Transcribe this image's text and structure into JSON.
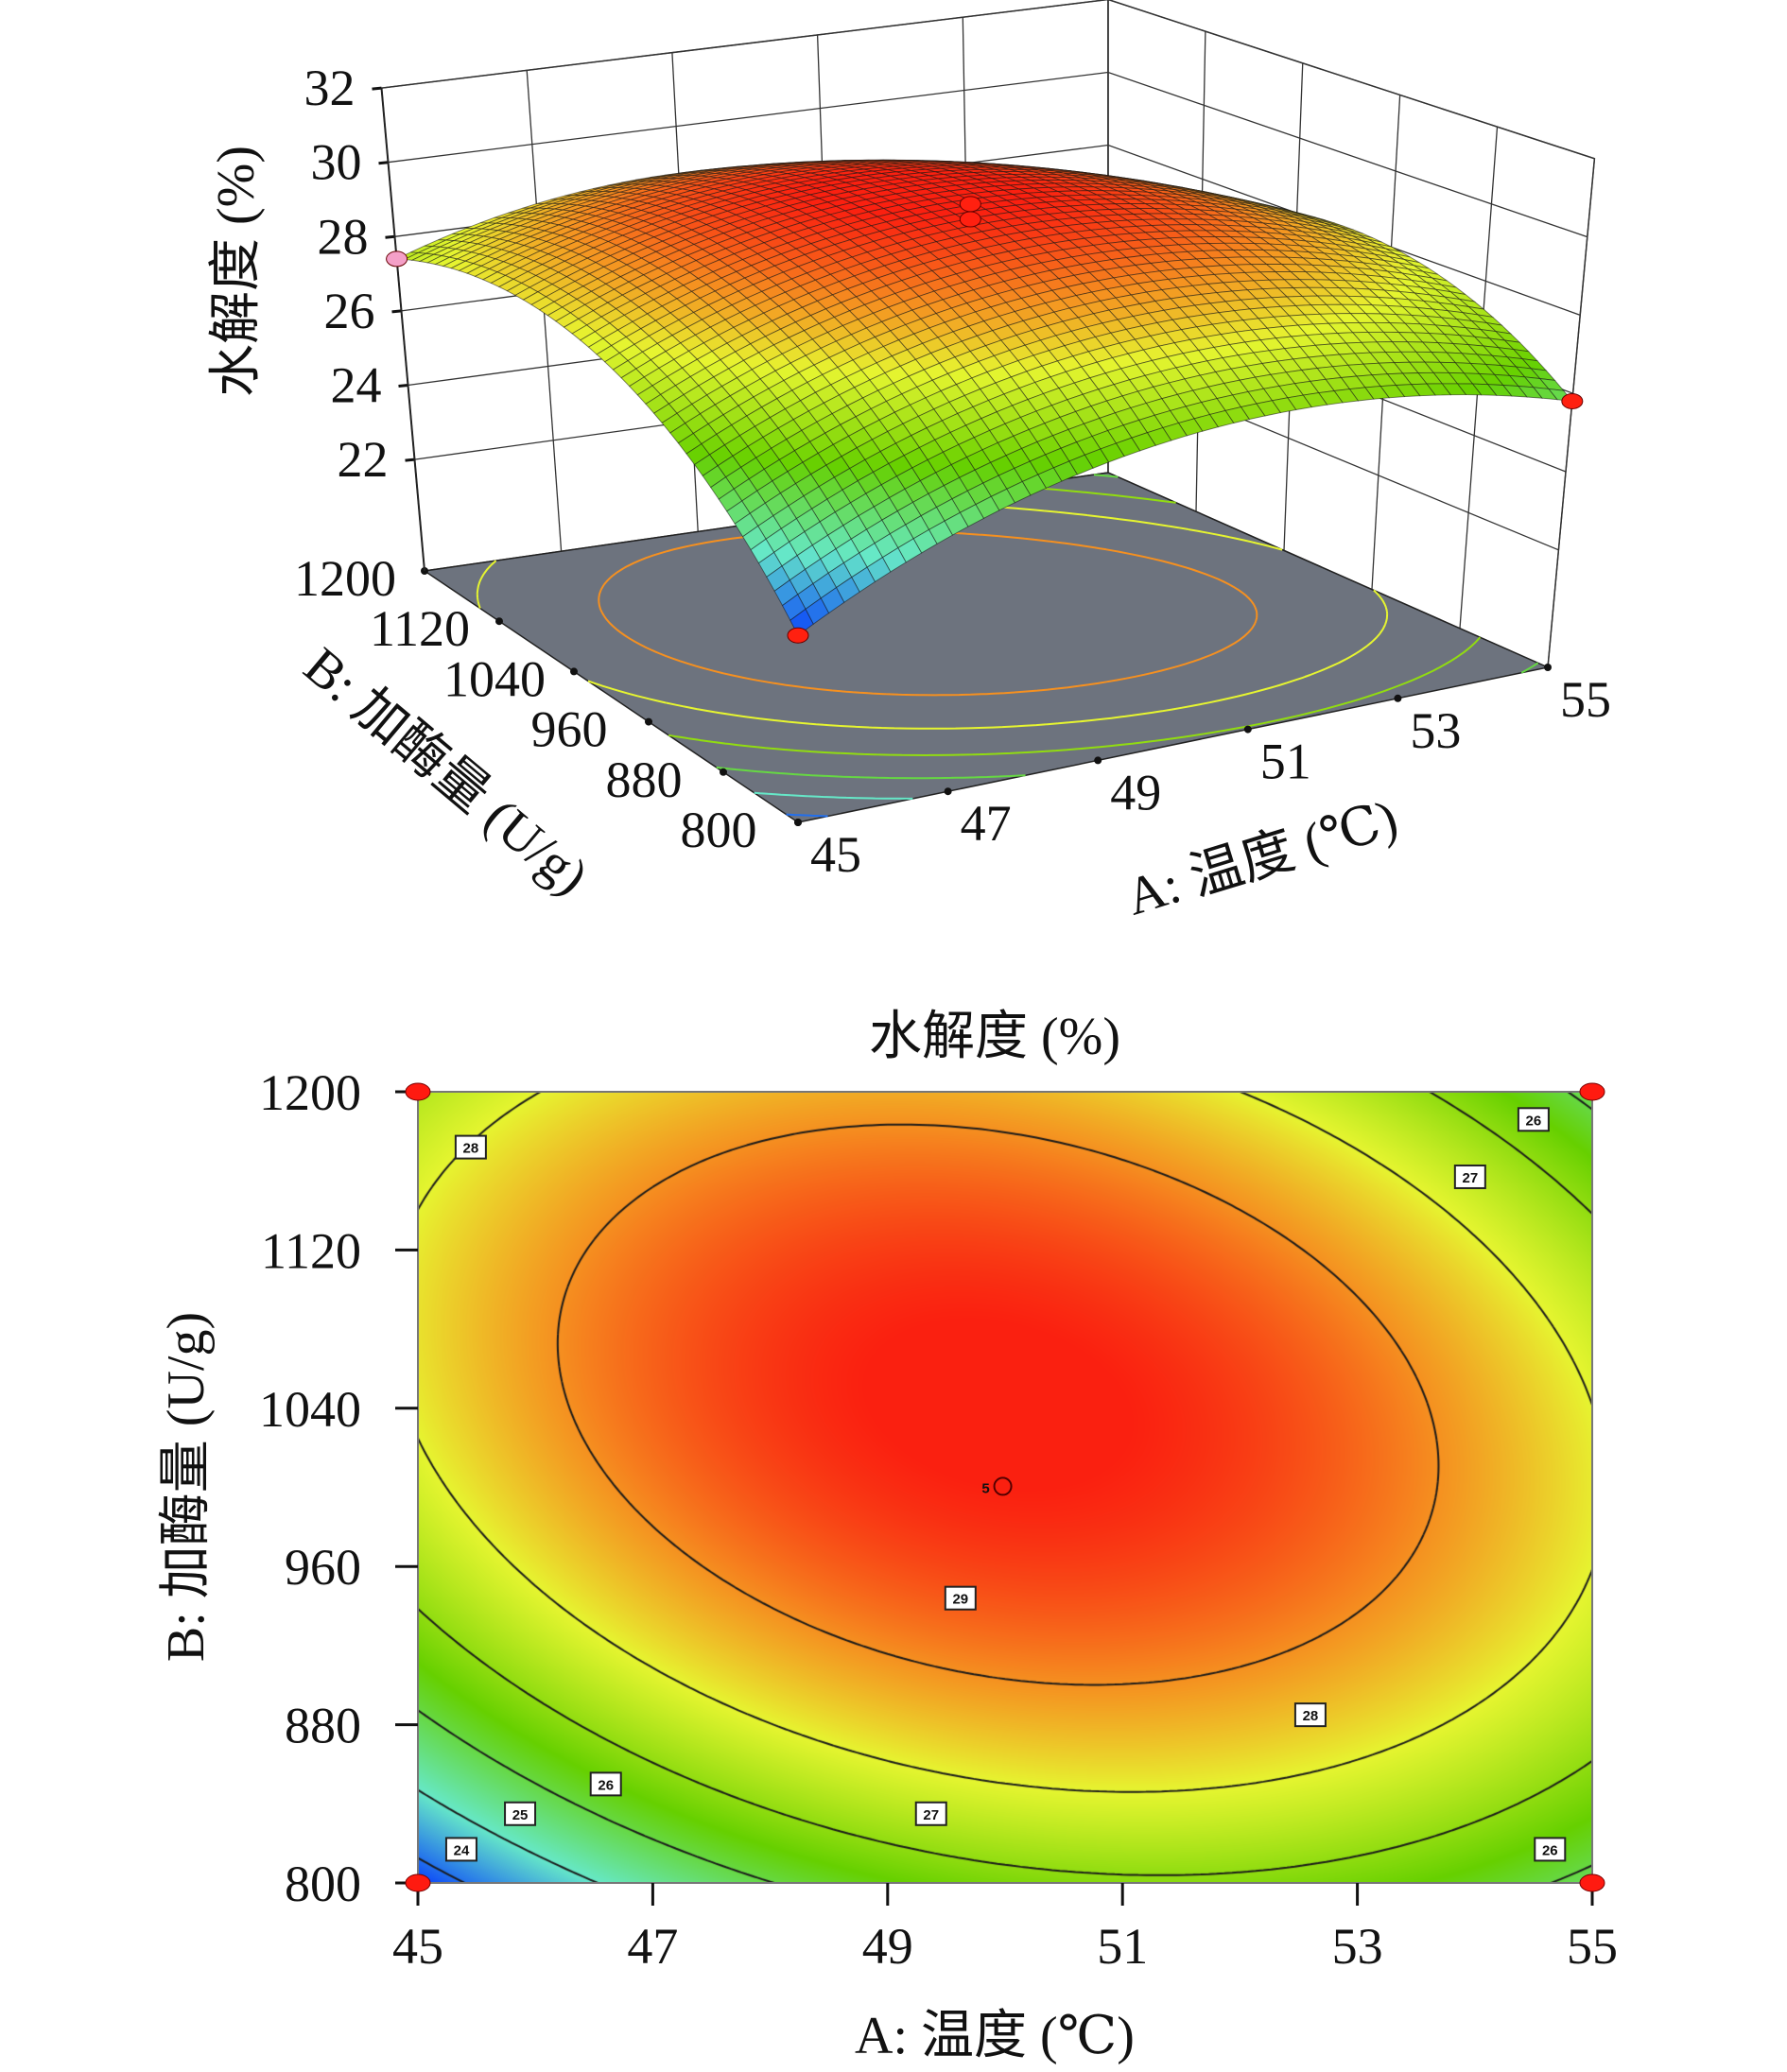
{
  "chart_data": [
    {
      "type": "surface3d",
      "zlabel": "水解度 (%)",
      "xlabel": "A: 温度 (℃)",
      "ylabel": "B: 加酶量 (U/g)",
      "x_ticks": [
        "45",
        "47",
        "49",
        "51",
        "53",
        "55"
      ],
      "y_ticks": [
        "800",
        "880",
        "960",
        "1040",
        "1120",
        "1200"
      ],
      "z_ticks": [
        "22",
        "24",
        "26",
        "28",
        "30",
        "32"
      ],
      "xlim": [
        45,
        55
      ],
      "ylim": [
        800,
        1200
      ],
      "zlim": [
        19,
        32
      ],
      "model": {
        "center_A": 50,
        "half_A": 5,
        "center_B": 1000,
        "half_B": 200,
        "b0": 30.0,
        "bA": 0.15,
        "bB": 0.95,
        "bAB": -0.95,
        "bAA": -2.05,
        "bBB": -2.3
      },
      "design_points": [
        {
          "A": 45,
          "B": 800,
          "y": 23.6,
          "color": "#ff2010"
        },
        {
          "A": 45,
          "B": 1200,
          "y": 27.4,
          "color": "#f4a0c8"
        },
        {
          "A": 55,
          "B": 800,
          "y": 25.8,
          "color": "#ff2010"
        },
        {
          "A": 50,
          "B": 1000,
          "y": 30.2,
          "color": "#ff2010"
        },
        {
          "A": 50,
          "B": 1000,
          "y": 29.8,
          "color": "#ff2010"
        }
      ]
    },
    {
      "type": "contour",
      "title": "水解度 (%)",
      "xlabel": "A: 温度 (℃)",
      "ylabel": "B: 加酶量 (U/g)",
      "x_ticks": [
        "45",
        "47",
        "49",
        "51",
        "53",
        "55"
      ],
      "y_ticks": [
        "800",
        "880",
        "960",
        "1040",
        "1120",
        "1200"
      ],
      "xlim": [
        45,
        55
      ],
      "ylim": [
        800,
        1200
      ],
      "levels": [
        24,
        25,
        26,
        27,
        28,
        29
      ],
      "contour_labels": [
        {
          "text": "28",
          "A": 45.45,
          "B": 1172
        },
        {
          "text": "26",
          "A": 54.5,
          "B": 1186
        },
        {
          "text": "27",
          "A": 53.96,
          "B": 1157
        },
        {
          "text": "29",
          "A": 49.62,
          "B": 944
        },
        {
          "text": "28",
          "A": 52.6,
          "B": 885
        },
        {
          "text": "26",
          "A": 46.6,
          "B": 850
        },
        {
          "text": "25",
          "A": 45.87,
          "B": 835
        },
        {
          "text": "24",
          "A": 45.37,
          "B": 817
        },
        {
          "text": "27",
          "A": 49.37,
          "B": 835
        },
        {
          "text": "26",
          "A": 54.64,
          "B": 817
        }
      ],
      "design_points": [
        {
          "A": 45,
          "B": 800
        },
        {
          "A": 45,
          "B": 1200
        },
        {
          "A": 55,
          "B": 800
        },
        {
          "A": 55,
          "B": 1200
        }
      ],
      "center_point": {
        "A": 49.9,
        "B": 1001,
        "label": "5"
      },
      "colormap": [
        "#0033ff",
        "#66e8c8",
        "#66d000",
        "#e6f530",
        "#f59020",
        "#fa2010"
      ],
      "colormap_values": [
        23.5,
        25,
        26.5,
        28,
        29,
        30
      ]
    }
  ]
}
